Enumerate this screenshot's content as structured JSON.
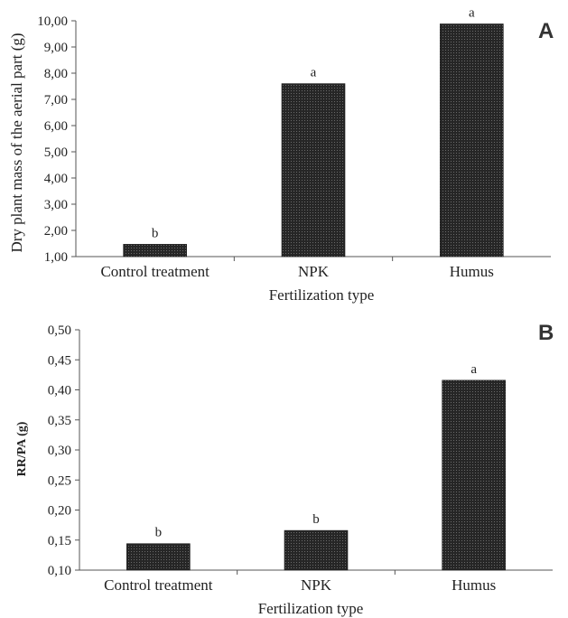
{
  "chart_data": [
    {
      "panel": "A",
      "type": "bar",
      "categories": [
        "Control treatment",
        "NPK",
        "Humus"
      ],
      "values": [
        1.47,
        7.6,
        9.88
      ],
      "significance": [
        "b",
        "a",
        "a"
      ],
      "xlabel": "Fertilization type",
      "ylabel": "Dry plant mass of the aerial part (g)",
      "ylim": [
        1.0,
        10.0
      ],
      "yticks": [
        "1,00",
        "2,00",
        "3,00",
        "4,00",
        "5,00",
        "6,00",
        "7,00",
        "8,00",
        "9,00",
        "10,00"
      ],
      "grid": false,
      "bar_color": "#2b2b2b"
    },
    {
      "panel": "B",
      "type": "bar",
      "categories": [
        "Control treatment",
        "NPK",
        "Humus"
      ],
      "values": [
        0.144,
        0.166,
        0.416
      ],
      "significance": [
        "b",
        "b",
        "a"
      ],
      "xlabel": "Fertilization type",
      "ylabel": "RR/PA (g)",
      "ylim": [
        0.1,
        0.5
      ],
      "yticks": [
        "0,10",
        "0,15",
        "0,20",
        "0,25",
        "0,30",
        "0,35",
        "0,40",
        "0,45",
        "0,50"
      ],
      "grid": false,
      "bar_color": "#2b2b2b"
    }
  ]
}
